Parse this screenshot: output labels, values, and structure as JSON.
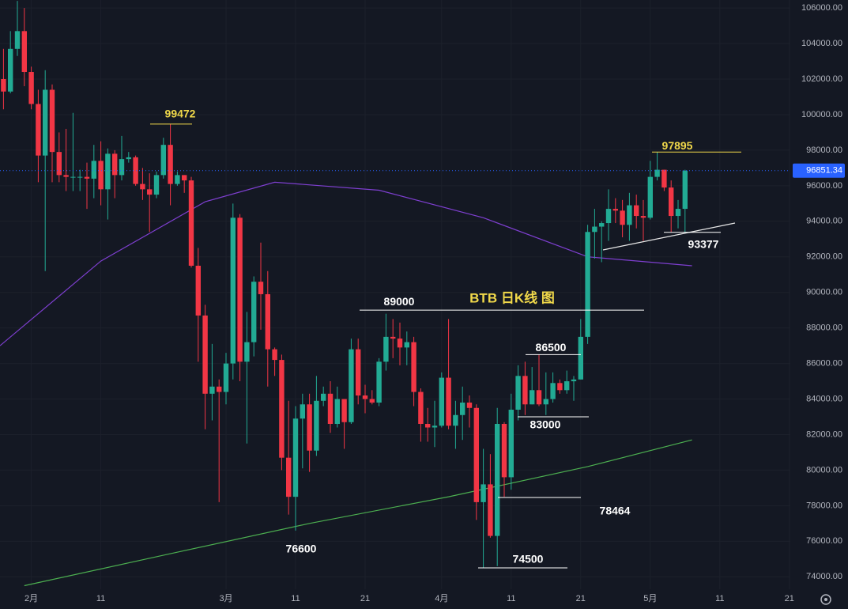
{
  "chart_data": {
    "type": "candlestick",
    "title": "BTB 日K线 图",
    "up_color": "#22ab94",
    "down_color": "#f23645",
    "x": [
      -4,
      -3,
      -2,
      -1,
      0,
      1,
      2,
      3,
      4,
      5,
      6,
      7,
      8,
      9,
      10,
      11,
      12,
      13,
      14,
      15,
      16,
      17,
      18,
      19,
      20,
      21,
      22,
      23,
      24,
      25,
      26,
      27,
      28,
      29,
      30,
      31,
      32,
      33,
      34,
      35,
      36,
      37,
      38,
      39,
      40,
      41,
      42,
      43,
      44,
      45,
      46,
      47,
      48,
      49,
      50,
      51,
      52,
      53,
      54,
      55,
      56,
      57,
      58,
      59,
      60,
      61,
      62,
      63,
      64,
      65,
      66,
      67,
      68,
      69,
      70,
      71,
      72,
      73,
      74,
      75,
      76,
      77,
      78,
      79,
      80,
      81,
      82,
      83,
      84,
      85,
      86,
      87,
      88,
      89,
      90,
      91,
      92,
      93,
      94
    ],
    "open": [
      102000,
      101300,
      103700,
      104700,
      102400,
      100600,
      97700,
      101400,
      97900,
      96600,
      96500,
      96500,
      96500,
      96400,
      97400,
      95800,
      97800,
      96600,
      97500,
      97600,
      96100,
      95800,
      95500,
      96600,
      98300,
      96100,
      96600,
      96300,
      91500,
      88700,
      84300,
      84700,
      84400,
      86000,
      94200,
      86100,
      87200,
      90600,
      89900,
      86800,
      86200,
      80700,
      78500,
      82900,
      83700,
      81100,
      83900,
      84300,
      82600,
      84000,
      82700,
      86800,
      84200,
      84000,
      83800,
      86100,
      87500,
      87400,
      86900,
      87200,
      84400,
      82600,
      82400,
      82500,
      85200,
      82500,
      83100,
      83800,
      83500,
      78200,
      79200,
      76300,
      82600,
      79600,
      83400,
      85300,
      83700,
      84500,
      83700,
      84000,
      84900,
      84500,
      85000,
      85100,
      87500,
      93400,
      93700,
      93900,
      94700,
      94600,
      93800,
      94900,
      94300,
      94200,
      96500,
      96900,
      95900,
      94300,
      94700
    ],
    "high": [
      103700,
      104700,
      106400,
      106000,
      102700,
      101400,
      102500,
      101700,
      99000,
      99200,
      100100,
      96900,
      97300,
      98300,
      98500,
      98100,
      98000,
      98800,
      97900,
      97700,
      97000,
      96700,
      96800,
      98700,
      99472,
      96800,
      96600,
      96500,
      92500,
      89300,
      87100,
      85100,
      86600,
      95000,
      94400,
      88900,
      90900,
      92800,
      91200,
      86900,
      86500,
      83900,
      83600,
      84300,
      84300,
      85300,
      84700,
      85000,
      84700,
      84000,
      87400,
      87400,
      84800,
      84500,
      86300,
      88800,
      88500,
      88300,
      87800,
      87500,
      84600,
      83500,
      83900,
      85500,
      88500,
      83900,
      84700,
      84200,
      83700,
      81200,
      80900,
      83500,
      82700,
      84300,
      85900,
      86100,
      85800,
      86500,
      85500,
      85500,
      85100,
      85600,
      85300,
      88500,
      93800,
      94700,
      94000,
      95800,
      95300,
      95200,
      95600,
      95500,
      95200,
      97400,
      97895,
      96900,
      96300,
      95200,
      96900
    ],
    "low": [
      100300,
      101200,
      103300,
      101600,
      100300,
      96200,
      91200,
      96200,
      96200,
      95700,
      95700,
      95700,
      94700,
      95300,
      94900,
      94100,
      95300,
      96300,
      97300,
      96000,
      95200,
      93400,
      95300,
      96400,
      94900,
      96000,
      95600,
      91400,
      86100,
      82300,
      82800,
      78200,
      83700,
      85100,
      85000,
      81500,
      86400,
      87900,
      84700,
      85300,
      80000,
      77500,
      76600,
      80100,
      79900,
      80800,
      83600,
      82100,
      82400,
      81200,
      82600,
      83700,
      83200,
      83700,
      83600,
      85600,
      86300,
      85900,
      85900,
      83600,
      81600,
      81600,
      81300,
      82400,
      82300,
      81200,
      81700,
      82400,
      77200,
      74500,
      76200,
      74600,
      78500,
      78900,
      82800,
      83100,
      83700,
      83600,
      83100,
      83800,
      84300,
      84300,
      83900,
      85100,
      87100,
      91900,
      91700,
      92900,
      93900,
      93100,
      92900,
      93600,
      92900,
      94100,
      96300,
      95700,
      93400,
      93600,
      93377
    ],
    "close": [
      101300,
      103700,
      104700,
      102400,
      100600,
      97700,
      101400,
      97900,
      96600,
      96500,
      96500,
      96500,
      96400,
      97400,
      95800,
      97800,
      96600,
      97500,
      97600,
      96100,
      95800,
      95500,
      96600,
      98300,
      96100,
      96600,
      96300,
      91500,
      88700,
      84300,
      84700,
      84400,
      86000,
      94200,
      86100,
      87200,
      90600,
      89900,
      86800,
      86200,
      80700,
      78500,
      82900,
      83700,
      81100,
      83900,
      84300,
      82600,
      84000,
      82700,
      86800,
      84200,
      84000,
      83800,
      86100,
      87500,
      87400,
      86900,
      87200,
      84400,
      82600,
      82400,
      82500,
      85200,
      82500,
      83100,
      83800,
      83500,
      78200,
      79200,
      76300,
      82600,
      79600,
      83400,
      85300,
      83700,
      84500,
      83700,
      84000,
      84900,
      84500,
      85000,
      85100,
      87500,
      93400,
      93700,
      93900,
      94700,
      94600,
      93800,
      94900,
      94300,
      94200,
      96500,
      96900,
      95900,
      94300,
      94700,
      96851.34
    ],
    "lines": [
      {
        "color": "#4caf50",
        "x": [
          -1,
          20,
          40,
          60,
          80,
          95
        ],
        "values": [
          73500,
          75300,
          77000,
          78500,
          80200,
          81700
        ]
      },
      {
        "color": "#7e3fd0",
        "x": [
          -4.5,
          10,
          25,
          35,
          50,
          65,
          80,
          95
        ],
        "values": [
          87000,
          91760,
          95100,
          96200,
          95750,
          94200,
          92000,
          91500
        ]
      }
    ],
    "levels": [
      {
        "value": 99472,
        "color": "#f0d84a"
      },
      {
        "value": 97895,
        "color": "#f0d84a"
      },
      {
        "value": 93377,
        "color": "#ffffff"
      },
      {
        "value": 89000,
        "color": "#ffffff"
      },
      {
        "value": 86500,
        "color": "#ffffff"
      },
      {
        "value": 83000,
        "color": "#ffffff"
      },
      {
        "value": 78464,
        "color": "#ffffff"
      },
      {
        "value": 74500,
        "color": "#ffffff"
      }
    ],
    "low_mark": 76600,
    "xlim": [
      -4.5,
      109
    ],
    "ylim": [
      73300,
      106450
    ],
    "xticks": [
      {
        "value": 0,
        "label": "2月"
      },
      {
        "value": 10,
        "label": "11"
      },
      {
        "value": 28,
        "label": "3月"
      },
      {
        "value": 38,
        "label": "11"
      },
      {
        "value": 48,
        "label": "21"
      },
      {
        "value": 59,
        "label": "4月"
      },
      {
        "value": 69,
        "label": "11"
      },
      {
        "value": 79,
        "label": "21"
      },
      {
        "value": 89,
        "label": "5月"
      },
      {
        "value": 99,
        "label": "11"
      },
      {
        "value": 109,
        "label": "21"
      }
    ],
    "yticks": [
      {
        "value": 74000,
        "label": "74000.00"
      },
      {
        "value": 76000,
        "label": "76000.00"
      },
      {
        "value": 78000,
        "label": "78000.00"
      },
      {
        "value": 80000,
        "label": "80000.00"
      },
      {
        "value": 82000,
        "label": "82000.00"
      },
      {
        "value": 84000,
        "label": "84000.00"
      },
      {
        "value": 86000,
        "label": "86000.00"
      },
      {
        "value": 88000,
        "label": "88000.00"
      },
      {
        "value": 90000,
        "label": "90000.00"
      },
      {
        "value": 92000,
        "label": "92000.00"
      },
      {
        "value": 94000,
        "label": "94000.00"
      },
      {
        "value": 96000,
        "label": "96000.00"
      },
      {
        "value": 98000,
        "label": "98000.00"
      },
      {
        "value": 100000,
        "label": "100000.00"
      },
      {
        "value": 102000,
        "label": "102000.00"
      },
      {
        "value": 104000,
        "label": "104000.00"
      },
      {
        "value": 106000,
        "label": "106000.00"
      }
    ]
  }
}
